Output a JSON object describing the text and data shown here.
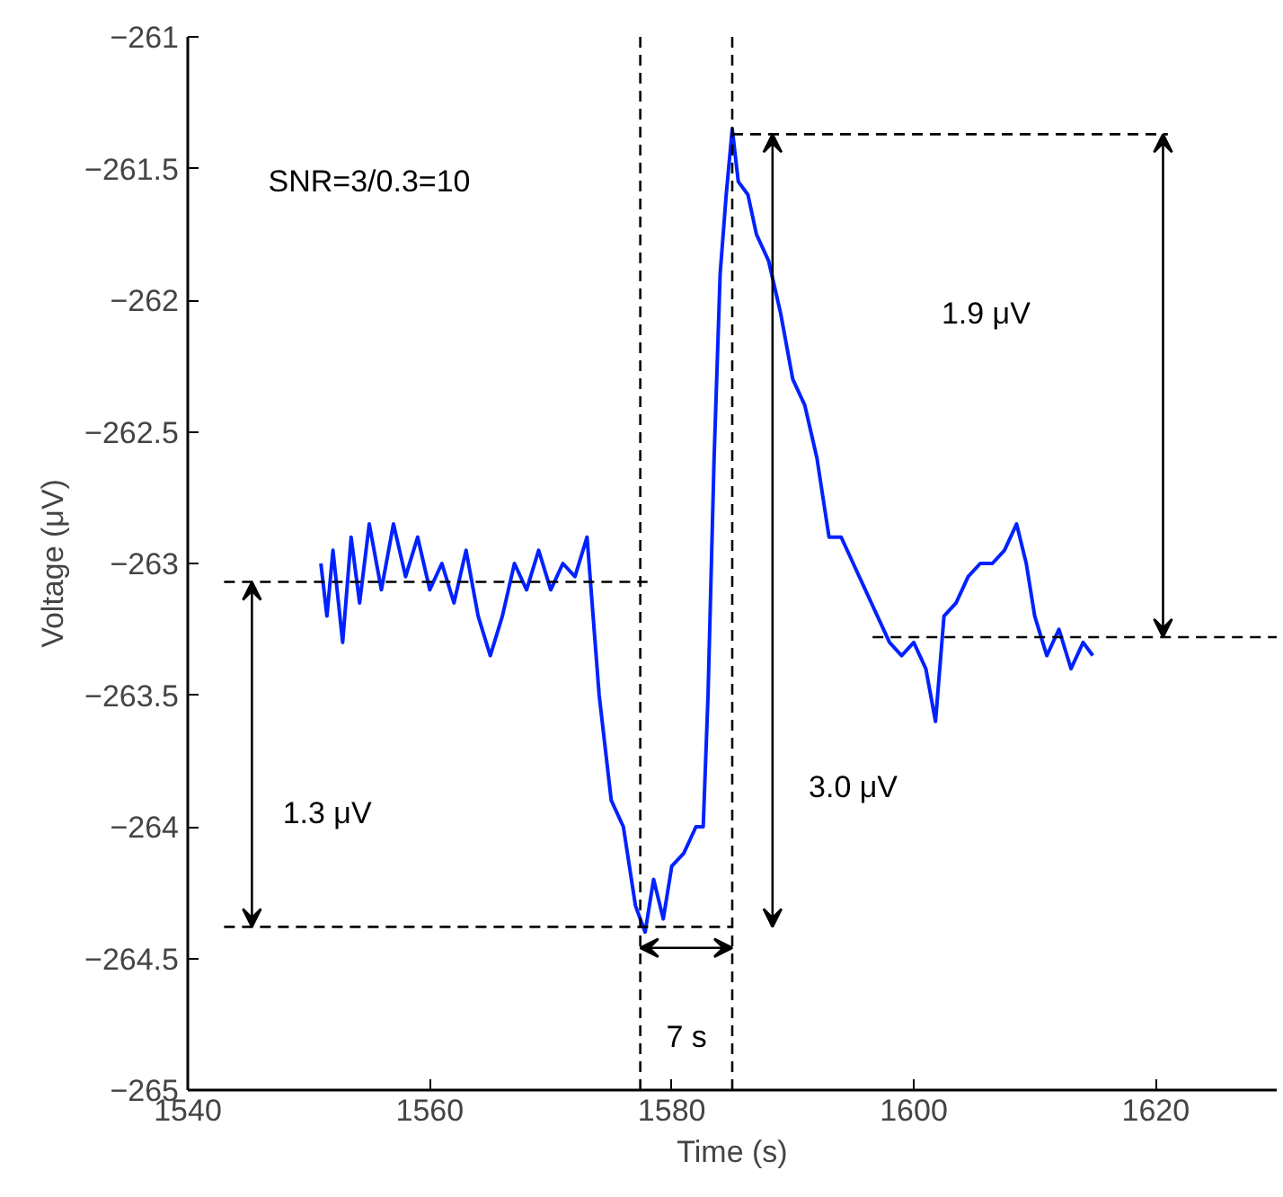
{
  "chart_data": {
    "type": "line",
    "xlabel": "Time (s)",
    "ylabel": "Voltage (μV)",
    "xlim": [
      1540,
      1630
    ],
    "xticks": [
      1540,
      1560,
      1580,
      1600,
      1620
    ],
    "ylim": [
      -265,
      -261
    ],
    "yticks": [
      -265,
      -264.5,
      -264,
      -263.5,
      -263,
      -262.5,
      -262,
      -261.5,
      -261
    ],
    "grid": false,
    "series": [
      {
        "color": "#0022ff",
        "line_style": "solid",
        "x": [
          1551.0,
          1551.5,
          1552,
          1552.8,
          1553.5,
          1554.2,
          1555,
          1556,
          1557,
          1558,
          1559,
          1560,
          1561,
          1562,
          1563,
          1564,
          1565,
          1566,
          1567,
          1568,
          1569,
          1570,
          1571,
          1572,
          1573,
          1573.5,
          1574,
          1575,
          1576,
          1577,
          1577.8,
          1578.5,
          1579.3,
          1580,
          1581,
          1582,
          1582.6,
          1583,
          1583.5,
          1584,
          1584.5,
          1585,
          1585.5,
          1586.3,
          1587,
          1588,
          1589,
          1590,
          1591,
          1592,
          1593,
          1594,
          1595,
          1596,
          1597,
          1598,
          1599,
          1600,
          1601,
          1601.8,
          1602.5,
          1603.5,
          1604.5,
          1605.5,
          1606.5,
          1607.5,
          1608.5,
          1609.3,
          1610,
          1611,
          1612,
          1613,
          1614,
          1614.8
        ],
        "values": [
          -263.0,
          -263.2,
          -262.95,
          -263.3,
          -262.9,
          -263.15,
          -262.85,
          -263.1,
          -262.85,
          -263.05,
          -262.9,
          -263.1,
          -263.0,
          -263.15,
          -262.95,
          -263.2,
          -263.35,
          -263.2,
          -263.0,
          -263.1,
          -262.95,
          -263.1,
          -263.0,
          -263.05,
          -262.9,
          -263.2,
          -263.5,
          -263.9,
          -264.0,
          -264.3,
          -264.4,
          -264.2,
          -264.35,
          -264.15,
          -264.1,
          -264.0,
          -264.0,
          -263.5,
          -262.6,
          -261.9,
          -261.6,
          -261.35,
          -261.55,
          -261.6,
          -261.75,
          -261.85,
          -262.05,
          -262.3,
          -262.4,
          -262.6,
          -262.9,
          -262.9,
          -263.0,
          -263.1,
          -263.2,
          -263.3,
          -263.35,
          -263.3,
          -263.4,
          -263.6,
          -263.2,
          -263.15,
          -263.05,
          -263.0,
          -263.0,
          -262.95,
          -262.85,
          -263.0,
          -263.2,
          -263.35,
          -263.25,
          -263.4,
          -263.3,
          -263.35
        ]
      },
      {
        "color": "#000000",
        "line_style": "dashed",
        "x": [
          1543,
          1578
        ],
        "values": [
          -263.07,
          -263.07
        ]
      },
      {
        "color": "#000000",
        "line_style": "dashed",
        "x": [
          1543,
          1585
        ],
        "values": [
          -264.38,
          -264.38
        ]
      },
      {
        "color": "#000000",
        "line_style": "dashed",
        "x": [
          1585,
          1621
        ],
        "values": [
          -261.37,
          -261.37
        ]
      },
      {
        "color": "#000000",
        "line_style": "dashed",
        "x": [
          1596.6,
          1630
        ],
        "values": [
          -263.28,
          -263.28
        ]
      }
    ],
    "ref_lines": [
      {
        "axis": "x",
        "value": 1577.4,
        "color": "#000000",
        "line_style": "dashed"
      },
      {
        "axis": "x",
        "value": 1585,
        "color": "#000000",
        "line_style": "dashed"
      }
    ],
    "annotations": [
      "SNR=3/0.3=10",
      "1.3 μV",
      "3.0 μV",
      "1.9 μV",
      "7 s"
    ]
  }
}
